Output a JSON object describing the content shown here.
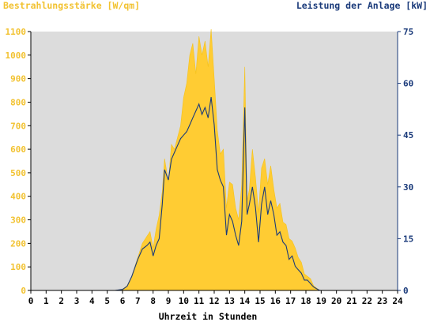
{
  "chart_data": {
    "type": "area",
    "title_left": "Bestrahlungsstärke [W/qm]",
    "title_right": "Leistung der Anlage [kW]",
    "xlabel": "Uhrzeit in Stunden",
    "x_ticks": [
      "0",
      "1",
      "2",
      "3",
      "4",
      "5",
      "6",
      "7",
      "8",
      "9",
      "10",
      "11",
      "12",
      "13",
      "14",
      "15",
      "16",
      "17",
      "18",
      "19",
      "20",
      "21",
      "22",
      "23",
      "24"
    ],
    "xlim": [
      0,
      24
    ],
    "y_left": {
      "ticks": [
        0,
        100,
        200,
        300,
        400,
        500,
        600,
        700,
        800,
        900,
        1000,
        1100
      ],
      "lim": [
        0,
        1100
      ]
    },
    "y_right": {
      "ticks": [
        0,
        15,
        30,
        45,
        60,
        75
      ],
      "lim": [
        0,
        75
      ]
    },
    "grid": false,
    "colors": {
      "plot_background": "#dcdcdc",
      "irradiance_fill": "#ffcc33",
      "power_line": "#1a3a7a",
      "left_axis_text": "#f2c230",
      "right_axis_text": "#1a3a7a"
    },
    "series": [
      {
        "axis": "left",
        "style": "filled-area",
        "x": [
          0,
          5.5,
          6,
          6.3,
          6.6,
          7,
          7.3,
          7.6,
          7.8,
          8,
          8.2,
          8.4,
          8.6,
          8.75,
          9,
          9.2,
          9.4,
          9.6,
          9.8,
          10,
          10.2,
          10.4,
          10.6,
          10.8,
          11,
          11.2,
          11.4,
          11.6,
          11.8,
          12,
          12.2,
          12.4,
          12.6,
          12.8,
          13,
          13.2,
          13.4,
          13.6,
          13.8,
          14,
          14.15,
          14.3,
          14.5,
          14.7,
          14.9,
          15.1,
          15.3,
          15.5,
          15.7,
          15.9,
          16.1,
          16.3,
          16.5,
          16.7,
          16.9,
          17.1,
          17.3,
          17.5,
          17.7,
          17.9,
          18.1,
          18.3,
          18.5,
          18.7,
          18.9,
          19.1,
          24
        ],
        "values": [
          0,
          0,
          5,
          20,
          60,
          140,
          200,
          230,
          250,
          180,
          260,
          320,
          420,
          560,
          460,
          620,
          600,
          650,
          700,
          820,
          880,
          1000,
          1050,
          920,
          1080,
          1000,
          1060,
          950,
          1110,
          900,
          680,
          580,
          600,
          350,
          460,
          450,
          350,
          300,
          450,
          950,
          380,
          430,
          600,
          480,
          330,
          520,
          560,
          450,
          530,
          430,
          350,
          370,
          290,
          280,
          220,
          210,
          180,
          140,
          120,
          70,
          60,
          50,
          20,
          10,
          0,
          0,
          0
        ]
      },
      {
        "axis": "right",
        "style": "line",
        "x": [
          0,
          5.5,
          6,
          6.3,
          6.6,
          7,
          7.3,
          7.6,
          7.8,
          8,
          8.2,
          8.4,
          8.6,
          8.75,
          9,
          9.2,
          9.4,
          9.6,
          9.8,
          10,
          10.2,
          10.4,
          10.6,
          10.8,
          11,
          11.2,
          11.4,
          11.6,
          11.8,
          12,
          12.2,
          12.4,
          12.6,
          12.8,
          13,
          13.2,
          13.4,
          13.6,
          13.8,
          14,
          14.15,
          14.3,
          14.5,
          14.7,
          14.9,
          15.1,
          15.3,
          15.5,
          15.7,
          15.9,
          16.1,
          16.3,
          16.5,
          16.7,
          16.9,
          17.1,
          17.3,
          17.5,
          17.7,
          17.9,
          18.1,
          18.3,
          18.5,
          18.7,
          18.9,
          19.1,
          24
        ],
        "values": [
          0,
          0,
          0.3,
          1.2,
          4,
          9,
          12,
          13,
          14,
          10,
          13,
          15,
          25,
          35,
          32,
          38,
          40,
          42,
          44,
          45,
          46,
          48,
          50,
          52,
          54,
          51,
          53,
          50,
          56,
          48,
          35,
          32,
          30,
          16,
          22,
          20,
          16,
          13,
          20,
          53,
          22,
          25,
          30,
          24,
          14,
          25,
          30,
          22,
          26,
          22,
          16,
          17,
          14,
          13,
          9,
          10,
          7,
          6,
          5,
          3,
          3,
          2,
          1,
          0.5,
          0,
          0,
          0
        ]
      }
    ]
  }
}
